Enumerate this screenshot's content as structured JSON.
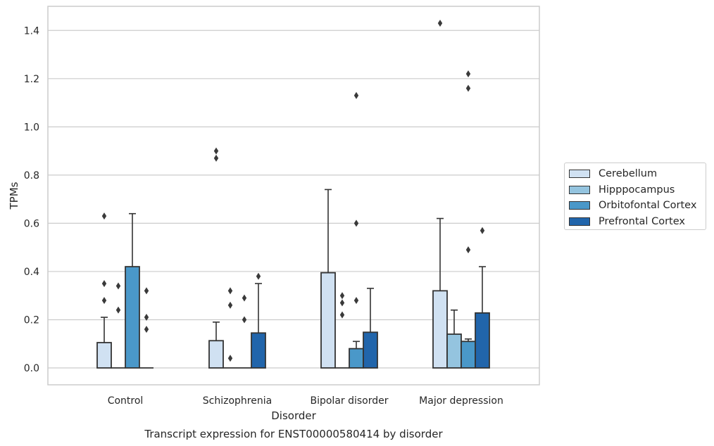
{
  "chart_data": {
    "type": "bar",
    "title": "Transcript expression for ENST00000580414 by disorder",
    "xlabel": "Disorder",
    "ylabel": "TPMs",
    "ylim": [
      -0.07,
      1.5
    ],
    "yticks": [
      "0.0",
      "0.2",
      "0.4",
      "0.6",
      "0.8",
      "1.0",
      "1.2",
      "1.4"
    ],
    "grid": true,
    "legend_position": "right",
    "categories": [
      "Control",
      "Schizophrenia",
      "Bipolar disorder",
      "Major depression"
    ],
    "series": [
      {
        "name": "Cerebellum",
        "color": "#d0e1f2",
        "values": [
          0.105,
          0.113,
          0.395,
          0.32
        ],
        "whisker_high": [
          0.21,
          0.19,
          0.74,
          0.62
        ],
        "outliers": [
          [
            0.28,
            0.35,
            0.63
          ],
          [
            0.87,
            0.9
          ],
          [],
          [
            1.43
          ]
        ]
      },
      {
        "name": "Hipppocampus",
        "color": "#94c4df",
        "values": [
          0.0,
          0.0,
          0.0,
          0.14
        ],
        "whisker_high": [
          null,
          null,
          null,
          0.24
        ],
        "outliers": [
          [
            0.24,
            0.34
          ],
          [
            0.04,
            0.26,
            0.32
          ],
          [
            0.22,
            0.27,
            0.3
          ],
          []
        ]
      },
      {
        "name": "Orbitofontal Cortex",
        "color": "#4a98c9",
        "values": [
          0.42,
          0.0,
          0.08,
          0.11
        ],
        "whisker_high": [
          0.64,
          null,
          0.11,
          0.12
        ],
        "outliers": [
          [],
          [
            0.2,
            0.29
          ],
          [
            0.28,
            0.6,
            1.13
          ],
          [
            0.49,
            1.16,
            1.22
          ]
        ]
      },
      {
        "name": "Prefrontal Cortex",
        "color": "#2165ab",
        "values": [
          0.0,
          0.145,
          0.148,
          0.228
        ],
        "whisker_high": [
          null,
          0.35,
          0.33,
          0.42
        ],
        "outliers": [
          [
            0.16,
            0.21,
            0.32
          ],
          [
            0.38
          ],
          [],
          [
            0.57
          ]
        ]
      }
    ]
  }
}
